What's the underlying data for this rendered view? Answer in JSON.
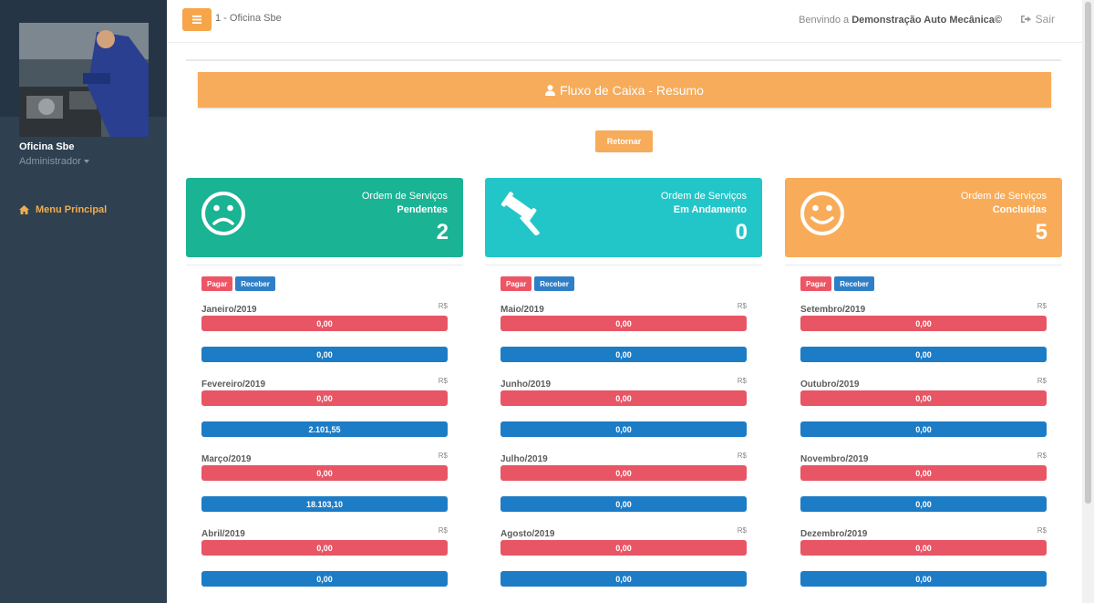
{
  "sidebar": {
    "profile_name": "Oficina Sbe",
    "profile_role": "Administrador",
    "menu_label": "Menu Principal"
  },
  "header": {
    "breadcrumb": "1 - Oficina Sbe",
    "welcome_prefix": "Benvindo a ",
    "welcome_name": "Demonstração Auto Mecânica©",
    "logout_label": "Sair"
  },
  "banner": {
    "title": "Fluxo de Caixa - Resumo"
  },
  "return_button": "Retornar",
  "cards": [
    {
      "label": "Ordem de Serviços",
      "status": "Pendentes",
      "count": "2",
      "color": "#1ab394",
      "icon": "frown-icon"
    },
    {
      "label": "Ordem de Serviços",
      "status": "Em Andamento",
      "count": "0",
      "color": "#23c6c8",
      "icon": "gavel-icon"
    },
    {
      "label": "Ordem de Serviços",
      "status": "Concluídas",
      "count": "5",
      "color": "#f8ac59",
      "icon": "smile-icon"
    }
  ],
  "tags": {
    "pay": "Pagar",
    "receive": "Receber"
  },
  "currency": "R$",
  "columns": [
    {
      "months": [
        {
          "name": "Janeiro/2019",
          "pay": "0,00",
          "receive": "0,00"
        },
        {
          "name": "Fevereiro/2019",
          "pay": "0,00",
          "receive": "2.101,55"
        },
        {
          "name": "Março/2019",
          "pay": "0,00",
          "receive": "18.103,10"
        },
        {
          "name": "Abril/2019",
          "pay": "0,00",
          "receive": "0,00"
        }
      ]
    },
    {
      "months": [
        {
          "name": "Maio/2019",
          "pay": "0,00",
          "receive": "0,00"
        },
        {
          "name": "Junho/2019",
          "pay": "0,00",
          "receive": "0,00"
        },
        {
          "name": "Julho/2019",
          "pay": "0,00",
          "receive": "0,00"
        },
        {
          "name": "Agosto/2019",
          "pay": "0,00",
          "receive": "0,00"
        }
      ]
    },
    {
      "months": [
        {
          "name": "Setembro/2019",
          "pay": "0,00",
          "receive": "0,00"
        },
        {
          "name": "Outubro/2019",
          "pay": "0,00",
          "receive": "0,00"
        },
        {
          "name": "Novembro/2019",
          "pay": "0,00",
          "receive": "0,00"
        },
        {
          "name": "Dezembro/2019",
          "pay": "0,00",
          "receive": "0,00"
        }
      ]
    }
  ]
}
